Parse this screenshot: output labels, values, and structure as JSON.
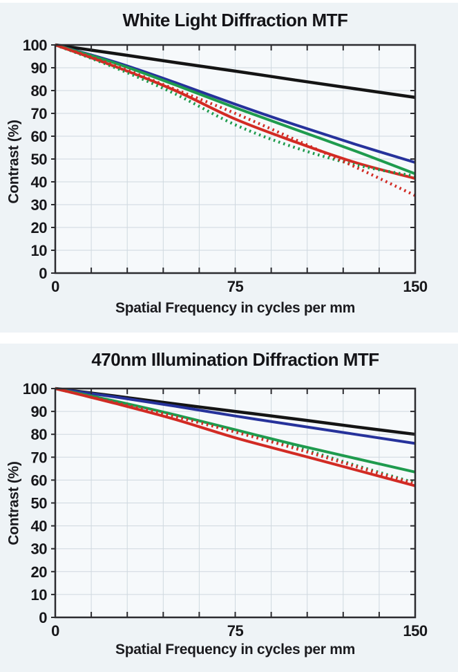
{
  "colors": {
    "page_background": "#eef3f6",
    "plot_background": "#f6f9fb",
    "gridline": "#cfd8df",
    "axis": "#2b2b2f",
    "text": "#17171a",
    "divider": "#ffffff",
    "series_black": "#141414",
    "series_blue": "#26329b",
    "series_green": "#1f9b4e",
    "series_red": "#d22b24"
  },
  "chart_data": [
    {
      "type": "line",
      "title": "White Light Diffraction MTF",
      "xlabel": "Spatial Frequency in cycles per mm",
      "ylabel": "Contrast (%)",
      "xlim": [
        0,
        150
      ],
      "ylim": [
        0,
        100
      ],
      "grid": true,
      "legend": "none",
      "xtick_interval": 15,
      "ytick_interval": 10,
      "xtick_labels": [
        0,
        75,
        150
      ],
      "ytick_labels": [
        0,
        10,
        20,
        30,
        40,
        50,
        60,
        70,
        80,
        90,
        100
      ],
      "x": [
        0,
        25,
        50,
        75,
        100,
        125,
        150
      ],
      "series": [
        {
          "name": "diffraction-limit-black",
          "color": "#141414",
          "style": "solid",
          "width": 4.5,
          "values": [
            100,
            96.2,
            92.3,
            88.5,
            84.6,
            80.8,
            77
          ]
        },
        {
          "name": "blue-solid",
          "color": "#26329b",
          "style": "solid",
          "width": 4,
          "values": [
            100,
            92.5,
            83.5,
            74,
            65,
            56.5,
            48.5
          ]
        },
        {
          "name": "green-solid",
          "color": "#1f9b4e",
          "style": "solid",
          "width": 4,
          "values": [
            100,
            92,
            82.5,
            72.5,
            63,
            53.5,
            43.5
          ]
        },
        {
          "name": "red-solid",
          "color": "#d22b24",
          "style": "solid",
          "width": 4,
          "values": [
            100,
            90.5,
            80,
            67.5,
            57.5,
            48.5,
            41.5
          ]
        },
        {
          "name": "green-dotted",
          "color": "#1f9b4e",
          "style": "dotted",
          "width": 4.2,
          "values": [
            100,
            90,
            78.5,
            65,
            55,
            47.5,
            42.5
          ]
        },
        {
          "name": "red-dotted",
          "color": "#d22b24",
          "style": "dotted",
          "width": 4.2,
          "values": [
            100,
            91,
            80.5,
            70,
            58.5,
            46.5,
            34
          ]
        }
      ]
    },
    {
      "type": "line",
      "title": "470nm Illumination Diffraction MTF",
      "xlabel": "Spatial Frequency in cycles per mm",
      "ylabel": "Contrast (%)",
      "xlim": [
        0,
        150
      ],
      "ylim": [
        0,
        100
      ],
      "grid": true,
      "legend": "none",
      "xtick_interval": 15,
      "ytick_interval": 10,
      "xtick_labels": [
        0,
        75,
        150
      ],
      "ytick_labels": [
        0,
        10,
        20,
        30,
        40,
        50,
        60,
        70,
        80,
        90,
        100
      ],
      "x": [
        0,
        25,
        50,
        75,
        100,
        125,
        150
      ],
      "series": [
        {
          "name": "diffraction-limit-black",
          "color": "#141414",
          "style": "solid",
          "width": 4.5,
          "values": [
            100,
            96.7,
            93.3,
            90,
            86.7,
            83.3,
            80
          ]
        },
        {
          "name": "blue-solid",
          "color": "#26329b",
          "style": "solid",
          "width": 4,
          "values": [
            100,
            96.3,
            92.3,
            88,
            84,
            80,
            76
          ]
        },
        {
          "name": "green-solid",
          "color": "#1f9b4e",
          "style": "solid",
          "width": 4,
          "values": [
            100,
            94.5,
            88.5,
            82,
            75.5,
            69.5,
            63.5
          ]
        },
        {
          "name": "red-solid",
          "color": "#d22b24",
          "style": "solid",
          "width": 4,
          "values": [
            100,
            93.5,
            86.5,
            78.5,
            71.5,
            64.5,
            57.5
          ]
        },
        {
          "name": "green-dotted",
          "color": "#1f9b4e",
          "style": "dotted",
          "width": 4.2,
          "values": [
            100,
            94,
            88,
            81.5,
            74.5,
            66.5,
            58.8
          ]
        },
        {
          "name": "red-dotted",
          "color": "#d22b24",
          "style": "dotted",
          "width": 4.2,
          "values": [
            100,
            93.8,
            87.7,
            81,
            73.8,
            66,
            58.3
          ]
        }
      ]
    }
  ]
}
